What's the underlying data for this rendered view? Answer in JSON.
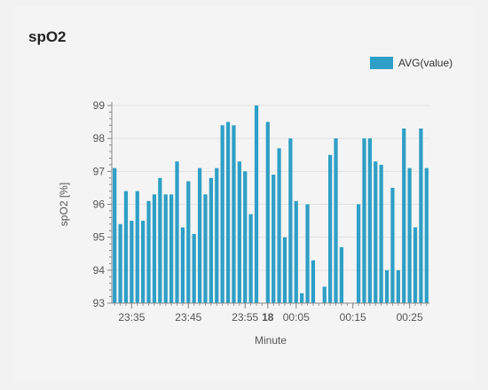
{
  "card": {
    "title": "spO2"
  },
  "chart_data": {
    "type": "bar",
    "title": "spO2",
    "xlabel": "Minute",
    "ylabel": "spO2 [%]",
    "ylim": [
      93,
      99
    ],
    "yticks": [
      "93",
      "94",
      "95",
      "96",
      "97",
      "98",
      "99"
    ],
    "xticks": [
      {
        "label": "23:35",
        "at": 1,
        "bold": false
      },
      {
        "label": "23:45",
        "at": 11,
        "bold": false
      },
      {
        "label": "23:55",
        "at": 21,
        "bold": false
      },
      {
        "label": "18",
        "at": 25,
        "bold": true
      },
      {
        "label": "00:05",
        "at": 30,
        "bold": false
      },
      {
        "label": "00:15",
        "at": 40,
        "bold": false
      },
      {
        "label": "00:25",
        "at": 50,
        "bold": false
      }
    ],
    "grid": true,
    "legend": {
      "position": "top-right"
    },
    "color": "#2e9fc6",
    "series": [
      {
        "name": "AVG(value)",
        "x": [
          -2,
          -1,
          0,
          1,
          2,
          3,
          4,
          5,
          6,
          7,
          8,
          9,
          10,
          11,
          12,
          13,
          14,
          15,
          16,
          17,
          18,
          19,
          20,
          21,
          22,
          23,
          25,
          26,
          27,
          28,
          29,
          30,
          31,
          32,
          33,
          35,
          36,
          37,
          38,
          41,
          42,
          43,
          44,
          45,
          46,
          47,
          48,
          49,
          50,
          51,
          52,
          53
        ],
        "values": [
          97.1,
          95.4,
          96.4,
          95.5,
          96.4,
          95.5,
          96.1,
          96.3,
          96.8,
          96.3,
          96.3,
          97.3,
          95.3,
          96.7,
          95.1,
          97.1,
          96.3,
          96.8,
          97.1,
          98.4,
          98.5,
          98.4,
          97.3,
          97.0,
          95.7,
          99.0,
          98.5,
          96.9,
          97.7,
          95.0,
          98.0,
          96.1,
          93.3,
          96.0,
          94.3,
          93.5,
          97.5,
          98.0,
          94.7,
          96.0,
          98.0,
          98.0,
          97.3,
          97.2,
          94.0,
          96.5,
          94.0,
          98.3,
          97.1,
          95.3,
          98.3,
          97.1
        ]
      }
    ]
  }
}
